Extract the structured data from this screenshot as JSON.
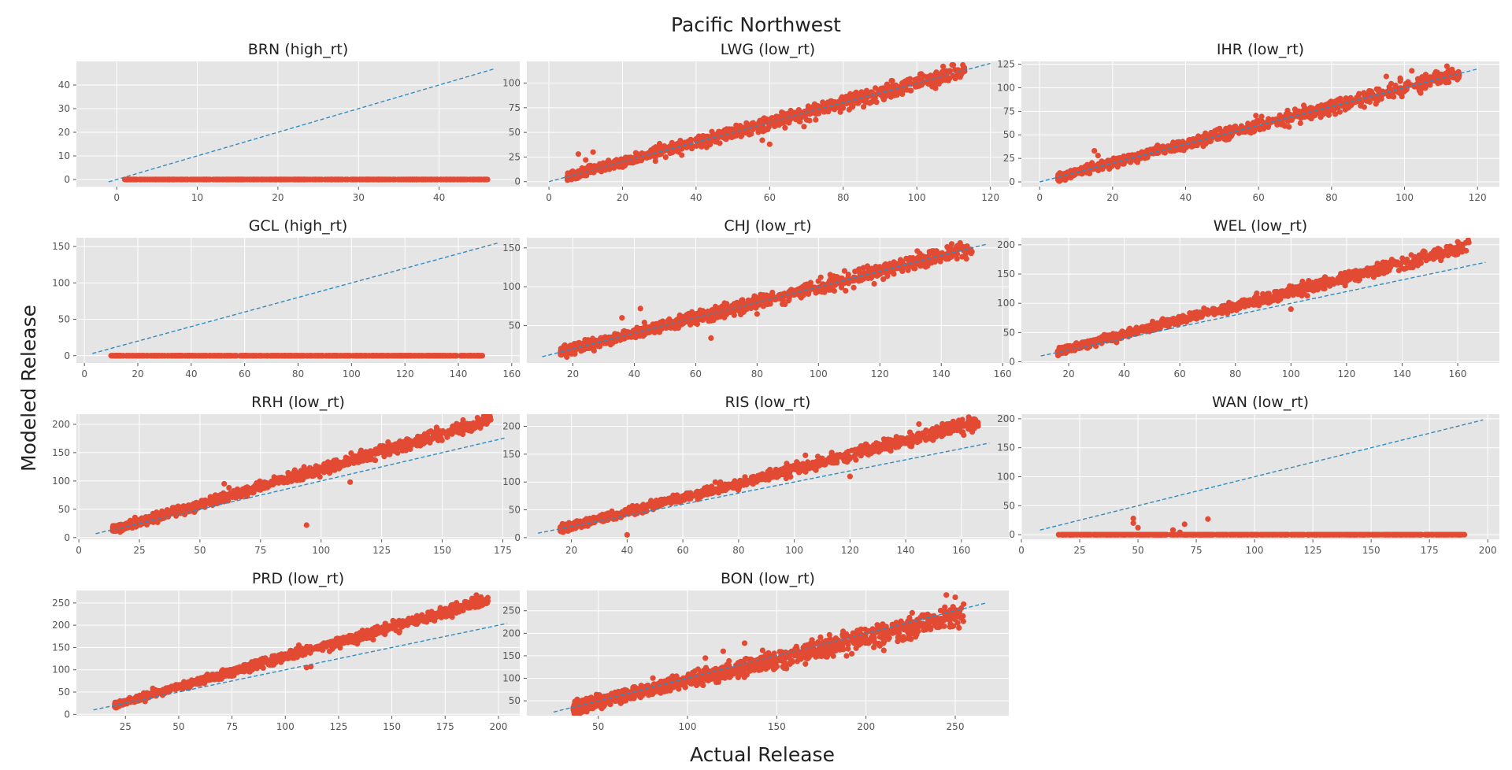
{
  "figure": {
    "title": "Pacific Northwest",
    "xlabel": "Actual Release",
    "ylabel": "Modeled Release"
  },
  "colors": {
    "points": "#e24a33",
    "identity_line": "#348abd",
    "panel_bg": "#e5e5e5",
    "grid": "#ffffff"
  },
  "chart_data": [
    {
      "type": "scatter",
      "title": "BRN (high_rt)",
      "xlim": [
        -5,
        50
      ],
      "ylim": [
        -3,
        50
      ],
      "xticks": [
        0,
        10,
        20,
        30,
        40
      ],
      "yticks": [
        0,
        10,
        20,
        30,
        40
      ],
      "identity_line": [
        -1,
        47
      ],
      "pattern": "zero",
      "x_range": [
        1,
        46
      ],
      "n": 600,
      "outliers": []
    },
    {
      "type": "scatter",
      "title": "LWG (low_rt)",
      "xlim": [
        -6,
        125
      ],
      "ylim": [
        -5,
        122
      ],
      "xticks": [
        0,
        20,
        40,
        60,
        80,
        100,
        120
      ],
      "yticks": [
        0,
        25,
        50,
        75,
        100
      ],
      "identity_line": [
        0,
        120
      ],
      "pattern": "linear",
      "slope": 1.0,
      "intercept": 0.0,
      "noise": 3.5,
      "x_range": [
        5,
        113
      ],
      "n": 1000,
      "outliers": [
        [
          8,
          28
        ],
        [
          10,
          22
        ],
        [
          12,
          30
        ],
        [
          58,
          42
        ],
        [
          60,
          38
        ],
        [
          108,
          105
        ],
        [
          113,
          112
        ]
      ]
    },
    {
      "type": "scatter",
      "title": "IHR (low_rt)",
      "xlim": [
        -5,
        126
      ],
      "ylim": [
        -5,
        128
      ],
      "xticks": [
        0,
        20,
        40,
        60,
        80,
        100,
        120
      ],
      "yticks": [
        0,
        25,
        50,
        75,
        100,
        125
      ],
      "identity_line": [
        0,
        120
      ],
      "pattern": "linear",
      "slope": 1.0,
      "intercept": 0.0,
      "noise": 3.5,
      "x_range": [
        5,
        115
      ],
      "n": 1000,
      "outliers": [
        [
          15,
          33
        ],
        [
          16,
          28
        ],
        [
          95,
          112
        ],
        [
          102,
          118
        ],
        [
          112,
          111
        ]
      ]
    },
    {
      "type": "scatter",
      "title": "GCL (high_rt)",
      "xlim": [
        -3,
        163
      ],
      "ylim": [
        -10,
        162
      ],
      "xticks": [
        0,
        20,
        40,
        60,
        80,
        100,
        120,
        140,
        160
      ],
      "yticks": [
        0,
        50,
        100,
        150
      ],
      "identity_line": [
        3,
        155
      ],
      "pattern": "zero",
      "x_range": [
        10,
        149
      ],
      "n": 700,
      "outliers": []
    },
    {
      "type": "scatter",
      "title": "CHJ (low_rt)",
      "xlim": [
        5,
        162
      ],
      "ylim": [
        2,
        163
      ],
      "xticks": [
        20,
        40,
        60,
        80,
        100,
        120,
        140,
        160
      ],
      "yticks": [
        50,
        100,
        150
      ],
      "identity_line": [
        10,
        155
      ],
      "pattern": "linear",
      "slope": 1.0,
      "intercept": 0.0,
      "noise": 4.5,
      "x_range": [
        16,
        150
      ],
      "n": 1100,
      "outliers": [
        [
          36,
          60
        ],
        [
          42,
          72
        ],
        [
          65,
          34
        ],
        [
          80,
          65
        ],
        [
          145,
          151
        ],
        [
          150,
          145
        ]
      ]
    },
    {
      "type": "scatter",
      "title": "WEL (low_rt)",
      "xlim": [
        3,
        175
      ],
      "ylim": [
        -2,
        212
      ],
      "xticks": [
        20,
        40,
        60,
        80,
        100,
        120,
        140,
        160
      ],
      "yticks": [
        0,
        50,
        100,
        150,
        200
      ],
      "identity_line": [
        10,
        170
      ],
      "pattern": "linear",
      "slope": 1.22,
      "intercept": -2.0,
      "noise": 4.5,
      "x_range": [
        16,
        164
      ],
      "n": 1100,
      "outliers": [
        [
          42,
          57
        ],
        [
          100,
          90
        ],
        [
          160,
          205
        ],
        [
          164,
          204
        ]
      ]
    },
    {
      "type": "scatter",
      "title": "RRH (low_rt)",
      "xlim": [
        -1,
        182
      ],
      "ylim": [
        -3,
        218
      ],
      "xticks": [
        0,
        25,
        50,
        75,
        100,
        125,
        150,
        175
      ],
      "yticks": [
        0,
        50,
        100,
        150,
        200
      ],
      "identity_line": [
        7,
        176
      ],
      "pattern": "linear",
      "slope": 1.25,
      "intercept": -4.0,
      "noise": 5.0,
      "x_range": [
        14,
        170
      ],
      "n": 1100,
      "outliers": [
        [
          60,
          95
        ],
        [
          62,
          88
        ],
        [
          94,
          22
        ],
        [
          112,
          98
        ],
        [
          165,
          203
        ],
        [
          170,
          208
        ]
      ]
    },
    {
      "type": "scatter",
      "title": "RIS (low_rt)",
      "xlim": [
        4,
        177
      ],
      "ylim": [
        -3,
        222
      ],
      "xticks": [
        20,
        40,
        60,
        80,
        100,
        120,
        140,
        160
      ],
      "yticks": [
        0,
        50,
        100,
        150,
        200
      ],
      "identity_line": [
        8,
        170
      ],
      "pattern": "linear",
      "slope": 1.28,
      "intercept": -5.0,
      "noise": 5.0,
      "x_range": [
        16,
        166
      ],
      "n": 1100,
      "outliers": [
        [
          40,
          5
        ],
        [
          104,
          148
        ],
        [
          120,
          110
        ],
        [
          165,
          212
        ],
        [
          160,
          190
        ]
      ]
    },
    {
      "type": "scatter",
      "title": "WAN (low_rt)",
      "xlim": [
        0,
        205
      ],
      "ylim": [
        -8,
        208
      ],
      "xticks": [
        0,
        25,
        50,
        75,
        100,
        125,
        150,
        175,
        200
      ],
      "yticks": [
        0,
        50,
        100,
        150,
        200
      ],
      "identity_line": [
        8,
        198
      ],
      "pattern": "zero",
      "x_range": [
        16,
        190
      ],
      "n": 700,
      "outliers": [
        [
          48,
          28
        ],
        [
          48,
          20
        ],
        [
          50,
          12
        ],
        [
          65,
          8
        ],
        [
          70,
          18
        ],
        [
          80,
          27
        ],
        [
          68,
          4
        ]
      ]
    },
    {
      "type": "scatter",
      "title": "PRD (low_rt)",
      "xlim": [
        2,
        210
      ],
      "ylim": [
        -3,
        278
      ],
      "xticks": [
        25,
        50,
        75,
        100,
        125,
        150,
        175,
        200
      ],
      "yticks": [
        0,
        50,
        100,
        150,
        200,
        250
      ],
      "identity_line": [
        10,
        204
      ],
      "pattern": "linear",
      "slope": 1.35,
      "intercept": -6.0,
      "noise": 5.5,
      "x_range": [
        20,
        195
      ],
      "n": 1100,
      "outliers": [
        [
          110,
          105
        ],
        [
          112,
          107
        ],
        [
          190,
          258
        ],
        [
          195,
          262
        ]
      ]
    },
    {
      "type": "scatter",
      "title": "BON (low_rt)",
      "xlim": [
        10,
        280
      ],
      "ylim": [
        17,
        295
      ],
      "xticks": [
        50,
        100,
        150,
        200,
        250
      ],
      "yticks": [
        50,
        100,
        150,
        200,
        250
      ],
      "identity_line": [
        25,
        268
      ],
      "pattern": "linear",
      "slope": 0.95,
      "intercept": 0.0,
      "noise": 10.0,
      "x_range": [
        36,
        255
      ],
      "n": 1300,
      "outliers": [
        [
          110,
          145
        ],
        [
          120,
          160
        ],
        [
          132,
          178
        ],
        [
          210,
          162
        ],
        [
          245,
          285
        ],
        [
          250,
          280
        ]
      ]
    }
  ]
}
